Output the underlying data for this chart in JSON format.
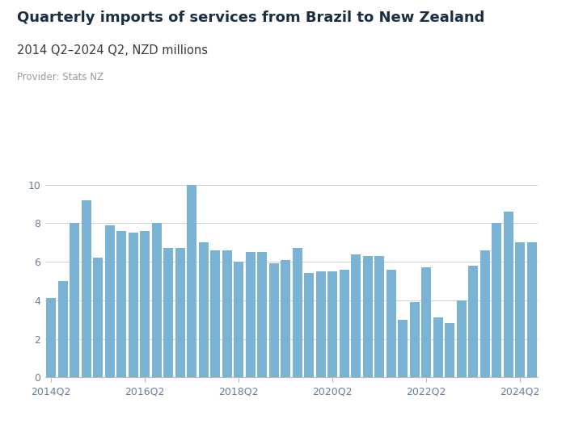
{
  "title": "Quarterly imports of services from Brazil to New Zealand",
  "subtitle": "2014 Q2–2024 Q2, NZD millions",
  "provider": "Provider: Stats NZ",
  "bar_color": "#7ab3d4",
  "background_color": "#ffffff",
  "logo_bg": "#5b5ea6",
  "values": [
    4.1,
    5.0,
    8.0,
    9.2,
    6.2,
    7.9,
    7.6,
    7.5,
    7.6,
    8.0,
    6.7,
    6.7,
    10.0,
    7.0,
    6.6,
    6.6,
    6.0,
    6.5,
    6.5,
    5.9,
    6.1,
    6.7,
    5.4,
    5.5,
    5.5,
    5.6,
    6.4,
    6.3,
    6.3,
    5.6,
    3.0,
    3.9,
    5.7,
    3.1,
    2.8,
    4.0,
    5.8,
    6.6,
    8.0,
    8.6,
    7.0,
    7.0
  ],
  "xtick_labels": [
    "2014Q2",
    "2016Q2",
    "2018Q2",
    "2020Q2",
    "2022Q2",
    "2024Q2"
  ],
  "xtick_positions": [
    0,
    8,
    16,
    24,
    32,
    40
  ],
  "ylim": [
    0,
    11
  ],
  "yticks": [
    0,
    2,
    4,
    6,
    8,
    10
  ],
  "grid_color": "#d0d0d0",
  "title_fontsize": 13,
  "subtitle_fontsize": 10.5,
  "provider_fontsize": 8.5,
  "tick_fontsize": 9,
  "tick_color": "#6a7f96",
  "title_color": "#1a2e44",
  "subtitle_color": "#3a3a3a"
}
